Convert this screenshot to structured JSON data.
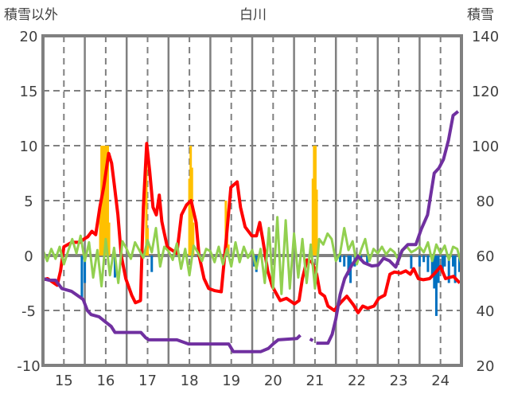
{
  "chart_data": {
    "type": "line",
    "title": "白川",
    "ylabel_left": "積雪以外",
    "ylabel_right": "積雪",
    "xlim": [
      14.5,
      24.5
    ],
    "ylim_left": [
      -10,
      20
    ],
    "ylim_right": [
      20,
      140
    ],
    "x_ticks": [
      "15",
      "16",
      "17",
      "18",
      "19",
      "20",
      "21",
      "22",
      "23",
      "24"
    ],
    "y_ticks_left": [
      "-10",
      "-5",
      "0",
      "5",
      "10",
      "15",
      "20"
    ],
    "y_ticks_right": [
      "20",
      "40",
      "60",
      "80",
      "100",
      "120",
      "140"
    ],
    "grid": true,
    "colors": {
      "red": "#ff0000",
      "green": "#92d050",
      "purple": "#7030a0",
      "orange": "#ffc000",
      "blue": "#0070c0",
      "axis": "#808080"
    },
    "series": [
      {
        "name": "red",
        "axis": "left",
        "type": "line",
        "points": [
          [
            14.5,
            -2.2
          ],
          [
            14.61,
            -2.1
          ],
          [
            14.76,
            -2.5
          ],
          [
            14.84,
            -2.7
          ],
          [
            14.92,
            -1.4
          ],
          [
            15.0,
            0.8
          ],
          [
            15.19,
            1.2
          ],
          [
            15.38,
            1.2
          ],
          [
            15.48,
            1.5
          ],
          [
            15.57,
            1.7
          ],
          [
            15.67,
            2.2
          ],
          [
            15.76,
            1.9
          ],
          [
            15.86,
            4.4
          ],
          [
            15.95,
            6.2
          ],
          [
            16.07,
            9.3
          ],
          [
            16.14,
            8.4
          ],
          [
            16.2,
            6.6
          ],
          [
            16.29,
            3.7
          ],
          [
            16.37,
            0
          ],
          [
            16.48,
            -2.1
          ],
          [
            16.62,
            -3.6
          ],
          [
            16.71,
            -4.3
          ],
          [
            16.83,
            -4.1
          ],
          [
            16.9,
            4.4
          ],
          [
            16.98,
            10.2
          ],
          [
            17.05,
            7.7
          ],
          [
            17.13,
            4.4
          ],
          [
            17.21,
            3.7
          ],
          [
            17.28,
            5.5
          ],
          [
            17.34,
            3.1
          ],
          [
            17.39,
            2.2
          ],
          [
            17.47,
            0.8
          ],
          [
            17.58,
            0.5
          ],
          [
            17.7,
            0.2
          ],
          [
            17.81,
            3.7
          ],
          [
            17.93,
            4.6
          ],
          [
            18.04,
            5.0
          ],
          [
            18.16,
            3.0
          ],
          [
            18.23,
            0
          ],
          [
            18.35,
            -2.1
          ],
          [
            18.46,
            -3.0
          ],
          [
            18.61,
            -3.2
          ],
          [
            18.76,
            -3.3
          ],
          [
            18.88,
            1.5
          ],
          [
            18.99,
            6.2
          ],
          [
            19.14,
            6.7
          ],
          [
            19.22,
            4.4
          ],
          [
            19.33,
            2.6
          ],
          [
            19.49,
            1.8
          ],
          [
            19.6,
            1.8
          ],
          [
            19.68,
            3.0
          ],
          [
            19.75,
            1.5
          ],
          [
            19.87,
            -1.4
          ],
          [
            19.98,
            -2.8
          ],
          [
            20.17,
            -4.1
          ],
          [
            20.32,
            -3.9
          ],
          [
            20.51,
            -4.4
          ],
          [
            20.62,
            -4.1
          ],
          [
            20.7,
            -2.1
          ],
          [
            20.81,
            -0.4
          ],
          [
            20.93,
            -0.6
          ],
          [
            21.04,
            -1.7
          ],
          [
            21.12,
            -3.4
          ],
          [
            21.23,
            -3.7
          ],
          [
            21.31,
            -4.6
          ],
          [
            21.46,
            -5.0
          ],
          [
            21.61,
            -4.3
          ],
          [
            21.76,
            -3.7
          ],
          [
            21.92,
            -4.5
          ],
          [
            22.03,
            -5.2
          ],
          [
            22.14,
            -4.6
          ],
          [
            22.26,
            -4.8
          ],
          [
            22.41,
            -4.6
          ],
          [
            22.52,
            -3.9
          ],
          [
            22.67,
            -3.6
          ],
          [
            22.79,
            -1.7
          ],
          [
            22.9,
            -1.5
          ],
          [
            23.05,
            -1.6
          ],
          [
            23.17,
            -1.4
          ],
          [
            23.28,
            -1.7
          ],
          [
            23.36,
            -1.2
          ],
          [
            23.47,
            -2.1
          ],
          [
            23.59,
            -2.2
          ],
          [
            23.74,
            -2.1
          ],
          [
            23.89,
            -1.5
          ],
          [
            24.0,
            -1.0
          ],
          [
            24.12,
            -2.1
          ],
          [
            24.31,
            -1.9
          ],
          [
            24.46,
            -2.5
          ]
        ]
      },
      {
        "name": "green",
        "axis": "left",
        "type": "line",
        "x_start": 14.5,
        "x_step": 0.1,
        "values": [
          0.5,
          -0.5,
          0.6,
          -0.3,
          0.8,
          -0.8,
          0.4,
          1.5,
          0.2,
          1.8,
          -0.5,
          1.2,
          -2,
          0.5,
          -2.8,
          1.5,
          -1.8,
          0.7,
          -2.5,
          1.3,
          0.6,
          -0.3,
          1.2,
          0.5,
          -0.2,
          1.4,
          0.3,
          2.5,
          -1,
          0.8,
          0.4,
          -0.4,
          1.1,
          -1.2,
          0.6,
          -1.8,
          0.9,
          0.3,
          -0.5,
          0.6,
          0.4,
          -0.6,
          0.8,
          -0.8,
          0.6,
          -1,
          1.2,
          -0.6,
          0.8,
          -0.2,
          0.5,
          -1.2,
          0.6,
          -2.5,
          2.5,
          -3,
          3.5,
          -3.5,
          3.2,
          -3,
          2,
          -2,
          1.5,
          -2.5,
          1,
          -3,
          1.5,
          1,
          2,
          1.5,
          -0.5,
          0.2,
          2.5,
          0.5,
          1.3,
          -0.8,
          0.5,
          1.5,
          -0.5,
          0.6,
          0.2,
          0.8,
          0.1,
          0.6,
          0.3,
          -0.5,
          0.5,
          0.8,
          0.3,
          0.5,
          0.8,
          0.3,
          1.2,
          -0.5,
          1,
          0.2,
          0.9,
          -0.4,
          0.8,
          0.6,
          -0.8
        ]
      },
      {
        "name": "purple",
        "axis": "right",
        "type": "line",
        "points": [
          [
            14.5,
            51.6
          ],
          [
            14.65,
            51
          ],
          [
            14.8,
            51
          ],
          [
            14.95,
            48
          ],
          [
            15.18,
            47
          ],
          [
            15.37,
            45
          ],
          [
            15.46,
            44
          ],
          [
            15.56,
            40
          ],
          [
            15.65,
            38.5
          ],
          [
            15.84,
            37.7
          ],
          [
            15.98,
            36
          ],
          [
            16.13,
            34.2
          ],
          [
            16.22,
            32
          ],
          [
            16.84,
            32
          ],
          [
            16.96,
            30
          ],
          [
            17.03,
            29.3
          ],
          [
            17.7,
            29.3
          ],
          [
            17.98,
            27.8
          ],
          [
            18.94,
            27.8
          ],
          [
            19.05,
            25
          ],
          [
            19.7,
            25
          ],
          [
            19.89,
            26.2
          ],
          [
            20.0,
            27.8
          ],
          [
            20.12,
            29.3
          ],
          [
            20.57,
            29.8
          ],
          [
            20.65,
            31
          ],
          null,
          [
            20.88,
            29.6
          ],
          [
            20.95,
            29
          ],
          null,
          [
            21.03,
            28.1
          ],
          [
            21.31,
            28.1
          ],
          [
            21.41,
            31.3
          ],
          [
            21.5,
            37
          ],
          [
            21.6,
            45.8
          ],
          [
            21.71,
            51.6
          ],
          [
            21.88,
            56.5
          ],
          [
            22.03,
            59.7
          ],
          [
            22.17,
            57.4
          ],
          [
            22.36,
            56.2
          ],
          [
            22.51,
            56.5
          ],
          [
            22.64,
            59
          ],
          [
            22.78,
            58.1
          ],
          [
            22.93,
            55.8
          ],
          [
            23.08,
            61.8
          ],
          [
            23.22,
            64
          ],
          [
            23.41,
            64
          ],
          [
            23.54,
            69.6
          ],
          [
            23.69,
            74.8
          ],
          [
            23.85,
            90
          ],
          [
            23.96,
            91.8
          ],
          [
            24.07,
            95
          ],
          [
            24.19,
            102
          ],
          [
            24.3,
            111
          ],
          [
            24.42,
            112.5
          ]
        ]
      },
      {
        "name": "orange",
        "axis": "left",
        "type": "bar",
        "points": [
          [
            15.87,
            4
          ],
          [
            15.9,
            10
          ],
          [
            15.93,
            10
          ],
          [
            15.96,
            10
          ],
          [
            15.99,
            10
          ],
          [
            16.02,
            10
          ],
          [
            16.05,
            10
          ],
          [
            16.08,
            3
          ],
          [
            16.97,
            10
          ],
          [
            17.0,
            2.5
          ],
          [
            18.0,
            7
          ],
          [
            18.03,
            10
          ],
          [
            18.06,
            8
          ],
          [
            18.09,
            3
          ],
          [
            18.87,
            5
          ],
          [
            18.9,
            4
          ],
          [
            18.93,
            1
          ],
          [
            20.95,
            7
          ],
          [
            20.98,
            10
          ],
          [
            21.01,
            10
          ],
          [
            21.04,
            6
          ],
          [
            21.07,
            1.5
          ]
        ]
      },
      {
        "name": "blue",
        "axis": "left",
        "type": "bar",
        "points": [
          [
            15.43,
            -4
          ],
          [
            15.5,
            -2.5
          ],
          [
            16.22,
            -2
          ],
          [
            17.1,
            -1.5
          ],
          [
            19.55,
            -1
          ],
          [
            19.6,
            -1.5
          ],
          [
            21.6,
            -0.6
          ],
          [
            21.7,
            -1
          ],
          [
            21.8,
            -1.8
          ],
          [
            21.85,
            -2.5
          ],
          [
            21.95,
            -1
          ],
          [
            22.1,
            -0.5
          ],
          [
            22.25,
            -0.8
          ],
          [
            23.3,
            -1.2
          ],
          [
            23.5,
            -1
          ],
          [
            23.6,
            -0.6
          ],
          [
            23.7,
            -1.5
          ],
          [
            23.8,
            -2
          ],
          [
            23.85,
            -3
          ],
          [
            23.9,
            -5.5
          ],
          [
            23.95,
            -2.5
          ],
          [
            24.05,
            -1.5
          ],
          [
            24.1,
            -1
          ],
          [
            24.2,
            -2.5
          ],
          [
            24.3,
            -1
          ],
          [
            24.35,
            -2.5
          ],
          [
            24.45,
            -1.5
          ]
        ]
      }
    ]
  }
}
